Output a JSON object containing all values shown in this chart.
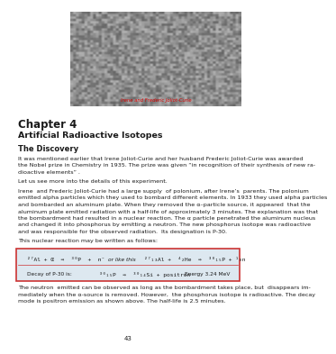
{
  "title_chapter": "Chapter 4",
  "title_main": "Artificial Radioactive Isotopes",
  "section_title": "The Discovery",
  "para1": "It was mentioned earlier that Irene Joliot-Curie and her husband Frederic Joliot-Curie was awarded\nthe Nobel prize in Chemistry in 1935. The prize was given “in recognition of their synthesis of new ra-\ndioactive elements” .",
  "para2": "Let us see more into the details of this experiment.",
  "para3_lines": [
    "Irene  and Frederic Joliot-Curie had a large supply  of polonium, after Irene’s  parents. The polonium",
    "emitted alpha particles which they used to bombard different elements. In 1933 they used alpha particles",
    "and bombarded an aluminum plate. When they removed the α–particle source, it appeared  that the",
    "aluminum plate emitted radiation with a half-life of approximately 3 minutes. The explanation was that",
    "the bombardment had resulted in a nuclear reaction. The α particle penetrated the aluminum nucleus",
    "and changed it into phosphorus by emitting a neutron. The new phosphorus isotope was radioactive",
    "and was responsible for the observed radiation.  Its designation is P-30."
  ],
  "para4": "This nuclear reaction may be written as follows:",
  "eq1_left": "²⁷Al + α  ⇒  ³⁰P  +  n̄",
  "eq1_mid": "or like this",
  "eq1_right": "²⁷₁₃Al +  ⁴₂He  ⇒  ³⁰₁₅P + ¹₀n",
  "eq2_left": "Decay of P-30 is:",
  "eq2_mid": "³⁰₁₅P  ⇒  ³⁰₁₄Si + positron",
  "eq2_right": "Energy 3.24 MeV",
  "caption": "Irene and Frederic Joliot-Curie",
  "footer_lines": [
    "The neutron  emitted can be observed as long as the bombardment takes place, but  disappears im-",
    "mediately when the α-source is removed. However,  the phosphorus isotope is radioactive. The decay",
    "mode is positron emission as shown above. The half-life is 2.5 minutes."
  ],
  "page_number": "43",
  "bg_color": "#ffffff",
  "box_border_color": "#cc3333",
  "box_fill_color": "#dde8f0",
  "text_color": "#1a1a1a",
  "photo_color": "#aaaaaa",
  "caption_color": "#dd0000"
}
